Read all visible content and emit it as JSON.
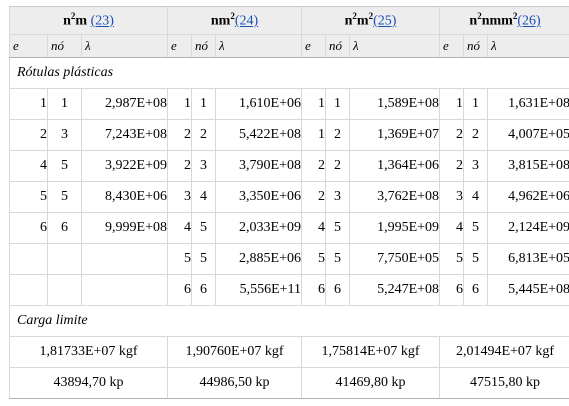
{
  "header": {
    "groups": [
      {
        "label_prefix": "n",
        "sup1": "2",
        "label_mid": "m",
        "label_post": "",
        "sup2": "",
        "ref": "(23)",
        "label_full": "n2m"
      },
      {
        "label_prefix": "nm",
        "sup1": "2",
        "label_mid": "",
        "label_post": "",
        "sup2": "",
        "ref": "(24)",
        "label_full": "nm2"
      },
      {
        "label_prefix": "n",
        "sup1": "2",
        "label_mid": "m",
        "label_post": "",
        "sup2": "2",
        "ref": "(25)",
        "label_full": "n2m2"
      },
      {
        "label_prefix": "n",
        "sup1": "2",
        "label_mid": "nmm",
        "label_post": "",
        "sup2": "2",
        "ref": "(26)",
        "label_full": "n2nmm2"
      }
    ],
    "sub": {
      "e": "e",
      "no": "nó",
      "lambda": "λ"
    }
  },
  "sections": {
    "plastic": "Rótulas plásticas",
    "load": "Carga limite"
  },
  "rows": [
    [
      [
        "1",
        "1",
        "2,987E+08"
      ],
      [
        "1",
        "1",
        "1,610E+06"
      ],
      [
        "1",
        "1",
        "1,589E+08"
      ],
      [
        "1",
        "1",
        "1,631E+08"
      ]
    ],
    [
      [
        "2",
        "3",
        "7,243E+08"
      ],
      [
        "2",
        "2",
        "5,422E+08"
      ],
      [
        "1",
        "2",
        "1,369E+07"
      ],
      [
        "2",
        "2",
        "4,007E+05"
      ]
    ],
    [
      [
        "4",
        "5",
        "3,922E+09"
      ],
      [
        "2",
        "3",
        "3,790E+08"
      ],
      [
        "2",
        "2",
        "1,364E+06"
      ],
      [
        "2",
        "3",
        "3,815E+08"
      ]
    ],
    [
      [
        "5",
        "5",
        "8,430E+06"
      ],
      [
        "3",
        "4",
        "3,350E+06"
      ],
      [
        "2",
        "3",
        "3,762E+08"
      ],
      [
        "3",
        "4",
        "4,962E+06"
      ]
    ],
    [
      [
        "6",
        "6",
        "9,999E+08"
      ],
      [
        "4",
        "5",
        "2,033E+09"
      ],
      [
        "4",
        "5",
        "1,995E+09"
      ],
      [
        "4",
        "5",
        "2,124E+09"
      ]
    ],
    [
      [
        "",
        "",
        ""
      ],
      [
        "5",
        "5",
        "2,885E+06"
      ],
      [
        "5",
        "5",
        "7,750E+05"
      ],
      [
        "5",
        "5",
        "6,813E+05"
      ]
    ],
    [
      [
        "",
        "",
        ""
      ],
      [
        "6",
        "6",
        "5,556E+11"
      ],
      [
        "6",
        "6",
        "5,247E+08"
      ],
      [
        "6",
        "6",
        "5,445E+08"
      ]
    ]
  ],
  "loads_kgf": [
    "1,81733E+07 kgf",
    "1,90760E+07 kgf",
    "1,75814E+07 kgf",
    "2,01494E+07 kgf"
  ],
  "loads_kp": [
    "43894,70 kp",
    "44986,50 kp",
    "41469,80 kp",
    "47515,80 kp"
  ]
}
